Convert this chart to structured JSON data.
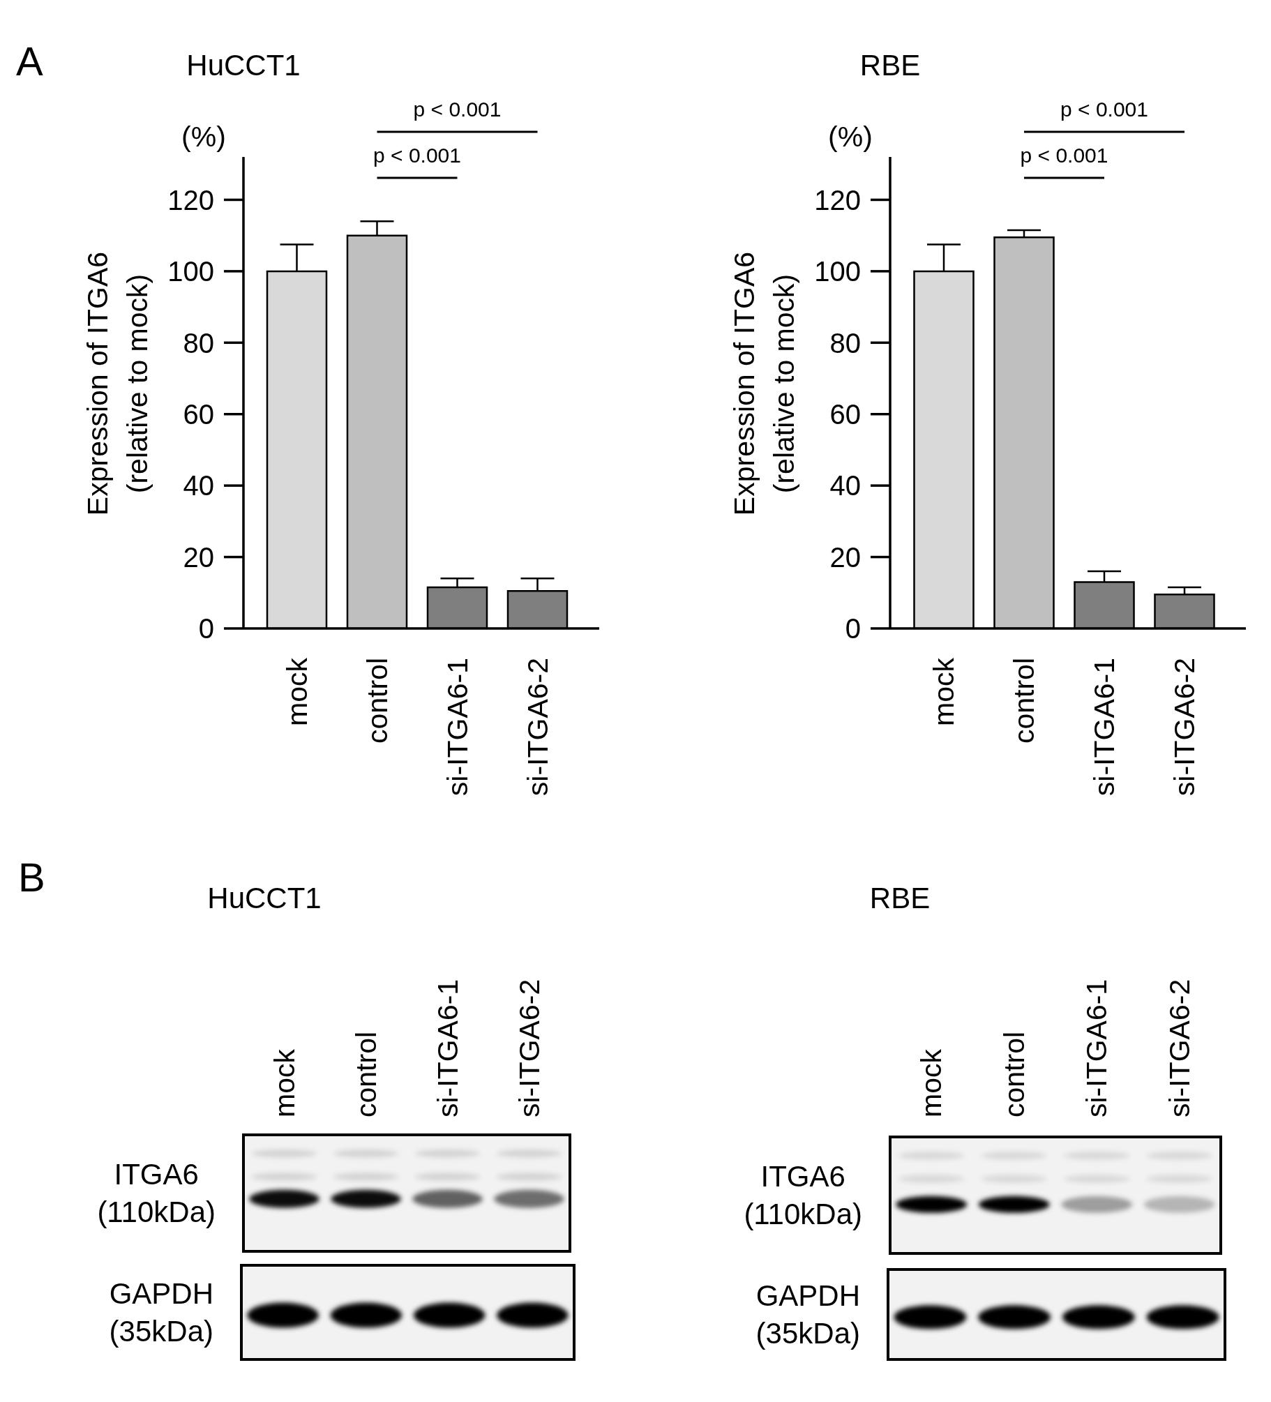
{
  "chart_data": [
    {
      "type": "bar",
      "title": "HuCCT1",
      "ylabel": "Expression of ITGA6\n(relative to mock)",
      "categories": [
        "mock",
        "control",
        "si-ITGA6-1",
        "si-ITGA6-2"
      ],
      "values": [
        100,
        110,
        11.5,
        10.5
      ],
      "errors": [
        [
          100,
          107.5
        ],
        [
          110,
          114
        ],
        [
          11.5,
          14
        ],
        [
          10.5,
          14
        ]
      ],
      "colors": [
        "#d9d9d9",
        "#bfbfbf",
        "#7f7f7f",
        "#7f7f7f"
      ],
      "ylim": [
        0,
        132
      ],
      "yticks": [
        0,
        20,
        40,
        60,
        80,
        100,
        120
      ],
      "annotations": [
        "A",
        "(%)",
        "p < 0.001",
        "p < 0.001"
      ]
    },
    {
      "type": "bar",
      "title": "RBE",
      "ylabel": "Expression of ITGA6\n(relative to mock)",
      "categories": [
        "mock",
        "control",
        "si-ITGA6-1",
        "si-ITGA6-2"
      ],
      "values": [
        100,
        109.5,
        13,
        9.5
      ],
      "errors": [
        [
          100,
          107.5
        ],
        [
          109.5,
          111.5
        ],
        [
          13,
          16
        ],
        [
          9.5,
          11.5
        ]
      ],
      "colors": [
        "#d9d9d9",
        "#bfbfbf",
        "#7f7f7f",
        "#7f7f7f"
      ],
      "ylim": [
        0,
        132
      ],
      "yticks": [
        0,
        20,
        40,
        60,
        80,
        100,
        120
      ],
      "annotations": [
        "(%)",
        "p < 0.001",
        "p < 0.001"
      ]
    },
    {
      "type": "other",
      "title": "HuCCT1",
      "categories": [
        "mock",
        "control",
        "si-ITGA6-1",
        "si-ITGA6-2"
      ],
      "annotations": [
        "B",
        "ITGA6\n(110kDa)",
        "GAPDH\n(35kDa)"
      ]
    },
    {
      "type": "other",
      "title": "RBE",
      "categories": [
        "mock",
        "control",
        "si-ITGA6-1",
        "si-ITGA6-2"
      ],
      "annotations": [
        "ITGA6\n(110kDa)",
        "GAPDH\n(35kDa)"
      ]
    }
  ]
}
